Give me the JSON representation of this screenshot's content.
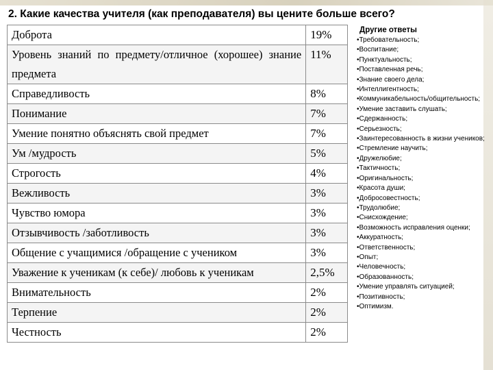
{
  "title": "2.  Какие качества учителя (как преподавателя) вы цените больше всего?",
  "rows": [
    {
      "label": "Доброта",
      "pct": "19%"
    },
    {
      "label": "Уровень знаний по предмету/отличное (хорошее) знание предмета",
      "pct": "11%"
    },
    {
      "label": "Справедливость",
      "pct": "8%"
    },
    {
      "label": "Понимание",
      "pct": "7%"
    },
    {
      "label": "Умение понятно объяснять свой предмет",
      "pct": "7%"
    },
    {
      "label": "Ум /мудрость",
      "pct": "5%"
    },
    {
      "label": "Строгость",
      "pct": "4%"
    },
    {
      "label": "Вежливость",
      "pct": "3%"
    },
    {
      "label": "Чувство юмора",
      "pct": "3%"
    },
    {
      "label": "Отзывчивость /заботливость",
      "pct": "3%"
    },
    {
      "label": "Общение с учащимися /обращение с учеником",
      "pct": "3%"
    },
    {
      "label": "Уважение к ученикам (к себе)/ любовь к ученикам",
      "pct": "2,5%"
    },
    {
      "label": "Внимательность",
      "pct": "2%"
    },
    {
      "label": "Терпение",
      "pct": "2%"
    },
    {
      "label": "Честность",
      "pct": "2%"
    }
  ],
  "other": {
    "heading": "Другие ответы",
    "items": [
      "•Требовательность;",
      "•Воспитание;",
      "•Пунктуальность;",
      "•Поставленная речь;",
      "•Знание своего дела;",
      "•Интеллигентность;",
      "•Коммуникабельность/общительность;",
      "•Умение заставить слушать;",
      "•Сдержанность;",
      "•Серьезность;",
      "•Заинтересованность в жизни учеников;",
      "•Стремление научить;",
      "•Дружелюбие;",
      "•Тактичность;",
      "•Оригинальность;",
      "•Красота души;",
      "•Добросовестность;",
      "•Трудолюбие;",
      "•Снисхождение;",
      "•Возможность исправления оценки;",
      "•Аккуратность;",
      "•Ответственность;",
      "•Опыт;",
      "•Человечность;",
      "•Образованность;",
      "•Умение управлять ситуацией;",
      "•Позитивность;",
      "•Оптимизм."
    ]
  }
}
